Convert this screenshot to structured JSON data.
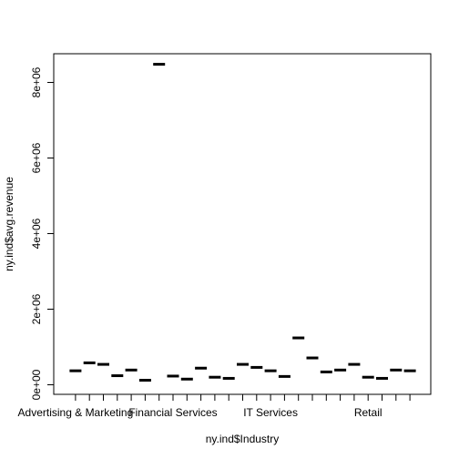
{
  "chart_data": {
    "type": "box",
    "xlabel": "ny.ind$Industry",
    "ylabel": "ny.ind$avg.revenue",
    "ylim": [
      0,
      8900000
    ],
    "yticks": [
      {
        "value": 0,
        "label": "0e+00"
      },
      {
        "value": 2000000,
        "label": "2e+06"
      },
      {
        "value": 4000000,
        "label": "4e+06"
      },
      {
        "value": 6000000,
        "label": "6e+06"
      },
      {
        "value": 8000000,
        "label": "8e+06"
      }
    ],
    "categories_shown": [
      {
        "index": 1,
        "label": "Advertising & Marketing"
      },
      {
        "index": 8,
        "label": "Financial Services"
      },
      {
        "index": 15,
        "label": "IT Services"
      },
      {
        "index": 22,
        "label": "Retail"
      }
    ],
    "values": [
      370000,
      580000,
      540000,
      240000,
      390000,
      120000,
      8480000,
      230000,
      150000,
      440000,
      200000,
      170000,
      540000,
      460000,
      370000,
      220000,
      1240000,
      710000,
      340000,
      390000,
      540000,
      200000,
      170000,
      390000,
      370000
    ]
  }
}
